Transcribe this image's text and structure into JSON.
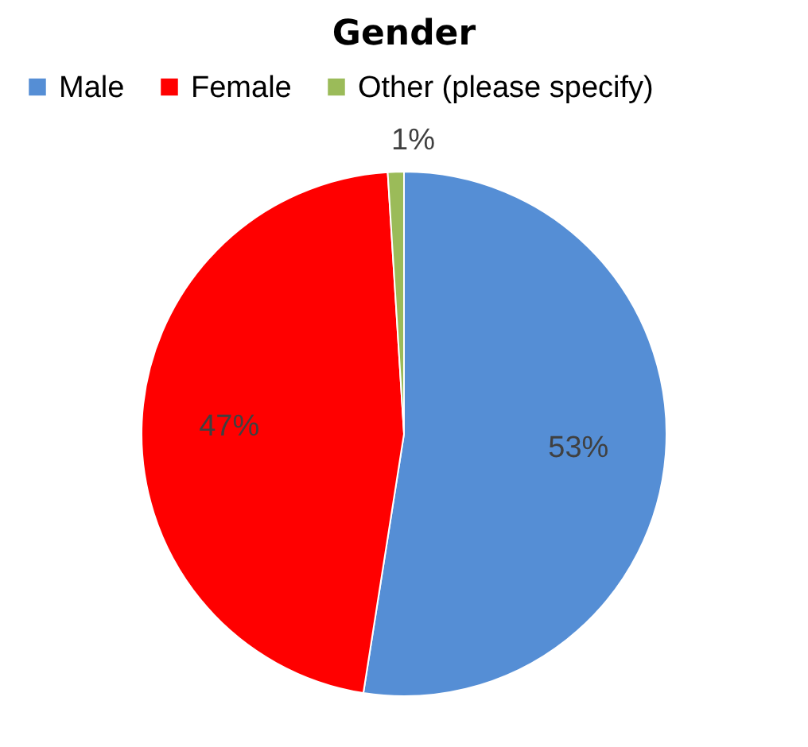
{
  "chart_data": {
    "type": "pie",
    "title": "Gender",
    "categories": [
      "Male",
      "Female",
      "Other (please specify)"
    ],
    "values": [
      53,
      47,
      1
    ],
    "colors": [
      "#558ed5",
      "#ff0000",
      "#9bbb59"
    ],
    "value_labels": [
      "53%",
      "47%",
      "1%"
    ],
    "legend": "top"
  }
}
